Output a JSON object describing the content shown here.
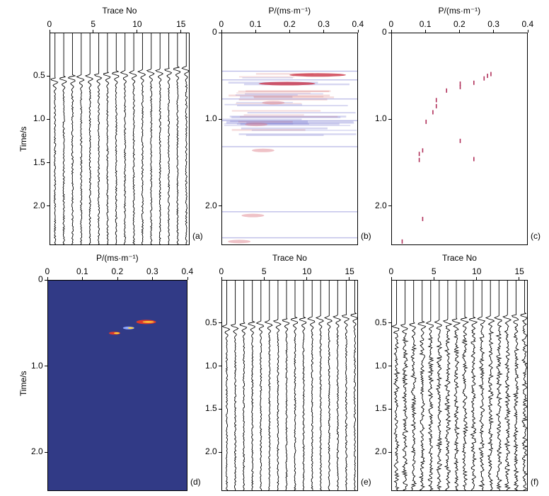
{
  "figure": {
    "ylabel": "Time/s"
  },
  "chart_data": [
    {
      "panel": "a",
      "type": "wiggle",
      "label": "(a)",
      "xlabel": "Trace No",
      "x_ticks": [
        "0",
        "5",
        "10",
        "15"
      ],
      "y_ticks": [
        "0.5",
        "1.0",
        "1.5",
        "2.0"
      ],
      "xlim": [
        0,
        16
      ],
      "ylim": [
        0,
        2.45
      ],
      "traces": 16,
      "first_break": [
        0.55,
        0.54,
        0.53,
        0.52,
        0.51,
        0.5,
        0.49,
        0.48,
        0.47,
        0.47,
        0.46,
        0.45,
        0.45,
        0.44,
        0.43,
        0.42
      ]
    },
    {
      "panel": "b",
      "type": "heatmap",
      "label": "(b)",
      "xlabel": "P/(ms·m⁻¹)",
      "x_ticks": [
        "0",
        "0.1",
        "0.2",
        "0.3",
        "0.4"
      ],
      "y_ticks": [
        "0",
        "1.0",
        "2.0"
      ],
      "xlim": [
        0,
        0.4
      ],
      "ylim": [
        0,
        2.45
      ],
      "events": [
        [
          0.28,
          0.48
        ],
        [
          0.19,
          0.58
        ],
        [
          0.15,
          0.8
        ],
        [
          0.1,
          1.05
        ],
        [
          0.12,
          1.35
        ],
        [
          0.09,
          2.1
        ],
        [
          0.05,
          2.4
        ]
      ]
    },
    {
      "panel": "c",
      "type": "scatter",
      "label": "(c)",
      "xlabel": "P/(ms·m⁻¹)",
      "x_ticks": [
        "0",
        "0.1",
        "0.2",
        "0.3",
        "0.4"
      ],
      "y_ticks": [
        "0",
        "1.0",
        "2.0"
      ],
      "xlim": [
        0,
        0.4
      ],
      "ylim": [
        0,
        2.45
      ],
      "points": [
        [
          0.29,
          0.47
        ],
        [
          0.28,
          0.49
        ],
        [
          0.27,
          0.52
        ],
        [
          0.24,
          0.57
        ],
        [
          0.2,
          0.58
        ],
        [
          0.2,
          0.62
        ],
        [
          0.16,
          0.66
        ],
        [
          0.13,
          0.77
        ],
        [
          0.13,
          0.84
        ],
        [
          0.12,
          0.91
        ],
        [
          0.1,
          1.02
        ],
        [
          0.2,
          1.24
        ],
        [
          0.09,
          1.35
        ],
        [
          0.08,
          1.39
        ],
        [
          0.08,
          1.46
        ],
        [
          0.09,
          2.14
        ],
        [
          0.03,
          2.4
        ],
        [
          0.24,
          1.45
        ]
      ]
    },
    {
      "panel": "d",
      "type": "heatmap",
      "label": "(d)",
      "xlabel": "P/(ms·m⁻¹)",
      "x_ticks": [
        "0",
        "0.1",
        "0.2",
        "0.3",
        "0.4"
      ],
      "y_ticks": [
        "0",
        "1.0",
        "2.0"
      ],
      "xlim": [
        0,
        0.4
      ],
      "ylim": [
        0,
        2.45
      ],
      "background": "#313a86",
      "events": [
        [
          0.28,
          0.48
        ],
        [
          0.19,
          0.61
        ],
        [
          0.23,
          0.55
        ]
      ]
    },
    {
      "panel": "e",
      "type": "wiggle",
      "label": "(e)",
      "xlabel": "Trace No",
      "x_ticks": [
        "0",
        "5",
        "10",
        "15"
      ],
      "y_ticks": [
        "0.5",
        "1.0",
        "1.5",
        "2.0"
      ],
      "xlim": [
        0,
        16
      ],
      "ylim": [
        0,
        2.45
      ],
      "traces": 16,
      "first_break": [
        0.55,
        0.54,
        0.53,
        0.52,
        0.51,
        0.5,
        0.49,
        0.48,
        0.47,
        0.47,
        0.46,
        0.45,
        0.45,
        0.44,
        0.43,
        0.42
      ]
    },
    {
      "panel": "f",
      "type": "wiggle",
      "label": "(f)",
      "xlabel": "Trace No",
      "x_ticks": [
        "0",
        "5",
        "10",
        "15"
      ],
      "y_ticks": [
        "0.5",
        "1.0",
        "1.5",
        "2.0"
      ],
      "xlim": [
        0,
        16
      ],
      "ylim": [
        0,
        2.45
      ],
      "traces": 16,
      "first_break": [
        0.55,
        0.54,
        0.53,
        0.52,
        0.51,
        0.5,
        0.49,
        0.48,
        0.47,
        0.47,
        0.46,
        0.45,
        0.45,
        0.44,
        0.43,
        0.42
      ]
    }
  ]
}
